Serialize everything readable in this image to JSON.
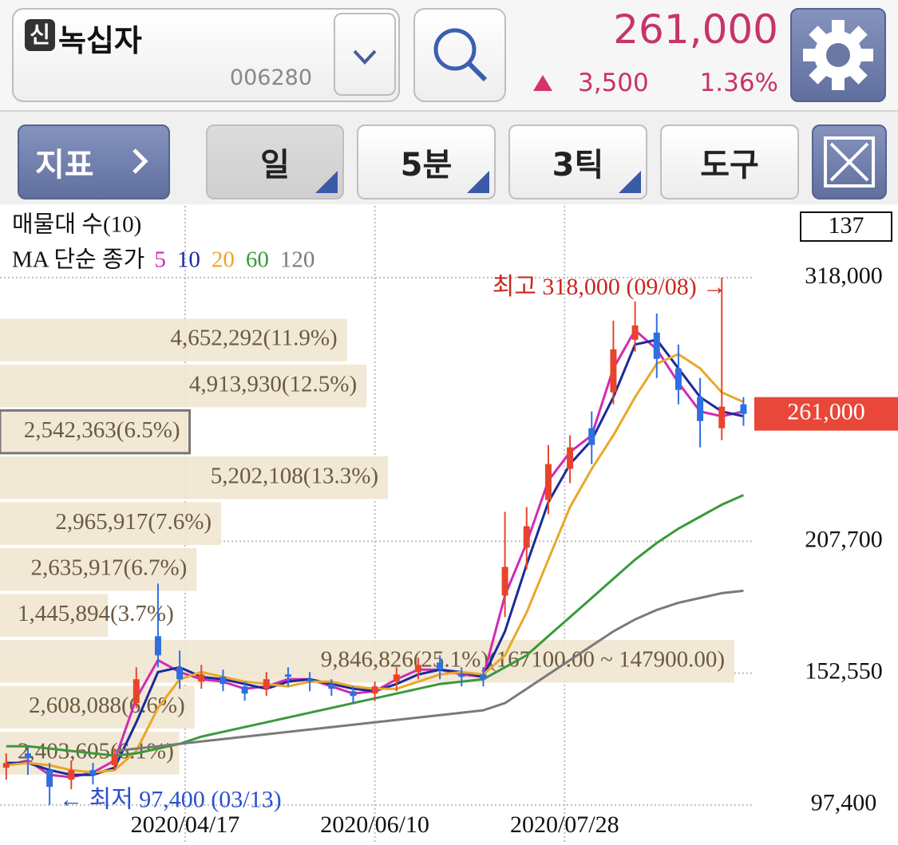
{
  "header": {
    "badge": "신",
    "name": "녹십자",
    "code": "006280",
    "price": "261,000",
    "change": "3,500",
    "change_rate": "1.36%"
  },
  "toolbar": {
    "indicator": "지표",
    "period_day": "일",
    "period_min": "5분",
    "period_tick": "3틱",
    "tools": "도구"
  },
  "chart_data": {
    "type": "candlestick",
    "title": "매물대 수(10)",
    "subtitle": "MA 단순 종가",
    "count": 137,
    "grid": true,
    "x": [
      0,
      4,
      8,
      12,
      16,
      20,
      24,
      28,
      32,
      36,
      40,
      44,
      48,
      52,
      56,
      60,
      64,
      68,
      72,
      76,
      80,
      84,
      88,
      92,
      96,
      100,
      104,
      108,
      112,
      116,
      120,
      124,
      128,
      132,
      136
    ],
    "xlim": [
      -1,
      138
    ],
    "xticks": [
      {
        "value": 33,
        "label": "2020/04/17"
      },
      {
        "value": 68,
        "label": "2020/06/10"
      },
      {
        "value": 103,
        "label": "2020/07/28"
      }
    ],
    "ylim": [
      82000,
      348000
    ],
    "yticks": [
      {
        "value": 318000,
        "label": "318,000"
      },
      {
        "value": 207700,
        "label": "207,700"
      },
      {
        "value": 152550,
        "label": "152,550"
      },
      {
        "value": 97400,
        "label": "97,400"
      }
    ],
    "open": [
      113000,
      119000,
      112000,
      108000,
      112000,
      114000,
      140000,
      168000,
      155000,
      149000,
      151000,
      147000,
      146000,
      152000,
      150000,
      148000,
      145000,
      144000,
      149000,
      153000,
      157000,
      152000,
      152000,
      185000,
      205000,
      225000,
      238000,
      255000,
      270000,
      292000,
      295000,
      280000,
      268000,
      255000,
      265000
    ],
    "high": [
      119000,
      122000,
      115000,
      116000,
      115000,
      121000,
      155000,
      190000,
      162000,
      156000,
      154000,
      149000,
      153000,
      155000,
      153000,
      150000,
      147000,
      149000,
      155000,
      159000,
      160000,
      155000,
      155000,
      220000,
      222000,
      248000,
      252000,
      262000,
      300000,
      308000,
      303000,
      290000,
      276000,
      318000,
      268000
    ],
    "low": [
      108000,
      110000,
      97400,
      104000,
      106000,
      112000,
      138000,
      155000,
      146000,
      146000,
      145000,
      141000,
      143000,
      147000,
      145000,
      143000,
      140000,
      141000,
      145000,
      150000,
      150000,
      147000,
      147000,
      176000,
      196000,
      219000,
      232000,
      240000,
      265000,
      287000,
      276000,
      265000,
      247000,
      250000,
      256000
    ],
    "close": [
      115000,
      117000,
      105000,
      112000,
      110000,
      118000,
      150000,
      160000,
      150000,
      152000,
      148000,
      144000,
      150000,
      151000,
      149000,
      146000,
      143000,
      147000,
      152000,
      156000,
      154000,
      151000,
      150000,
      197000,
      214000,
      240000,
      247000,
      248000,
      288000,
      298000,
      284000,
      271000,
      258000,
      264000,
      261000
    ],
    "up_color": "#e8442c",
    "down_color": "#2f6fe0",
    "series": [
      {
        "name": "5",
        "color": "#d12bb5",
        "values": [
          114000,
          116000,
          110000,
          109000,
          111000,
          116000,
          142000,
          158000,
          153000,
          150000,
          149000,
          146000,
          147000,
          150000,
          150000,
          147000,
          144000,
          145000,
          150000,
          154000,
          154000,
          152000,
          151000,
          185000,
          207000,
          233000,
          245000,
          252000,
          280000,
          296000,
          288000,
          274000,
          262000,
          260000,
          262000
        ]
      },
      {
        "name": "10",
        "color": "#1a2a9c",
        "values": [
          115000,
          115000,
          112000,
          110000,
          110000,
          113000,
          132000,
          153000,
          155000,
          151000,
          150000,
          148000,
          146000,
          149000,
          150000,
          148000,
          146000,
          145000,
          148000,
          152000,
          154000,
          153000,
          151000,
          170000,
          198000,
          224000,
          240000,
          250000,
          268000,
          290000,
          292000,
          280000,
          268000,
          262000,
          260000
        ]
      },
      {
        "name": "20",
        "color": "#e8a82a",
        "values": [
          114000,
          115000,
          114000,
          112000,
          111000,
          112000,
          120000,
          138000,
          150000,
          153000,
          151000,
          149000,
          148000,
          147000,
          149000,
          149000,
          147000,
          146000,
          146000,
          149000,
          152000,
          153000,
          152000,
          160000,
          178000,
          200000,
          222000,
          238000,
          252000,
          268000,
          282000,
          286000,
          280000,
          270000,
          266000
        ]
      },
      {
        "name": "60",
        "color": "#3a9a3a",
        "values": [
          122000,
          122000,
          121000,
          120000,
          119000,
          118000,
          119000,
          121000,
          123000,
          126000,
          128000,
          130000,
          132000,
          134000,
          136000,
          138000,
          140000,
          142000,
          144000,
          146000,
          148000,
          149000,
          150000,
          155000,
          160000,
          168000,
          176000,
          184000,
          192000,
          200000,
          207000,
          213000,
          218000,
          223000,
          227000
        ]
      },
      {
        "name": "120",
        "color": "#7a7a7a",
        "values": [
          null,
          null,
          null,
          null,
          null,
          120000,
          121000,
          122000,
          123000,
          124000,
          125000,
          126000,
          127000,
          128000,
          129000,
          130000,
          131000,
          132000,
          133000,
          134000,
          135000,
          136000,
          137000,
          140000,
          146000,
          152000,
          158000,
          164000,
          170000,
          175000,
          179000,
          182000,
          184000,
          186000,
          187000
        ]
      }
    ],
    "volume_profile": {
      "color": "#f1e6d2",
      "bins": [
        109500,
        128700,
        147900,
        167100,
        186300,
        205500,
        224700,
        243900,
        263100,
        282300,
        301500
      ],
      "values": [
        2403605,
        2608088,
        9846826,
        1445894,
        2635917,
        2965917,
        5202108,
        2542363,
        4913930,
        4652292
      ],
      "value_labels": [
        "2,403,605(6.1%)",
        "2,608,088(6.6%)",
        "9,846,826(25.1%)(167100.00 ~ 147900.00)",
        "1,445,894(3.7%)",
        "2,635,917(6.7%)",
        "2,965,917(7.6%)",
        "5,202,108(13.3%)",
        "2,542,363(6.5%)",
        "4,913,930(12.5%)",
        "4,652,292(11.9%)"
      ]
    },
    "current_price": {
      "value": 261000,
      "label": "261,000",
      "color": "#e8473a"
    },
    "annotations": [
      {
        "text": "최고 318,000 (09/08) →",
        "x": 132,
        "value": 318000,
        "color": "#c8281e"
      },
      {
        "text": "← 최저 97,400 (03/13)",
        "x": 8,
        "value": 97400,
        "color": "#2a4fd0"
      }
    ]
  }
}
